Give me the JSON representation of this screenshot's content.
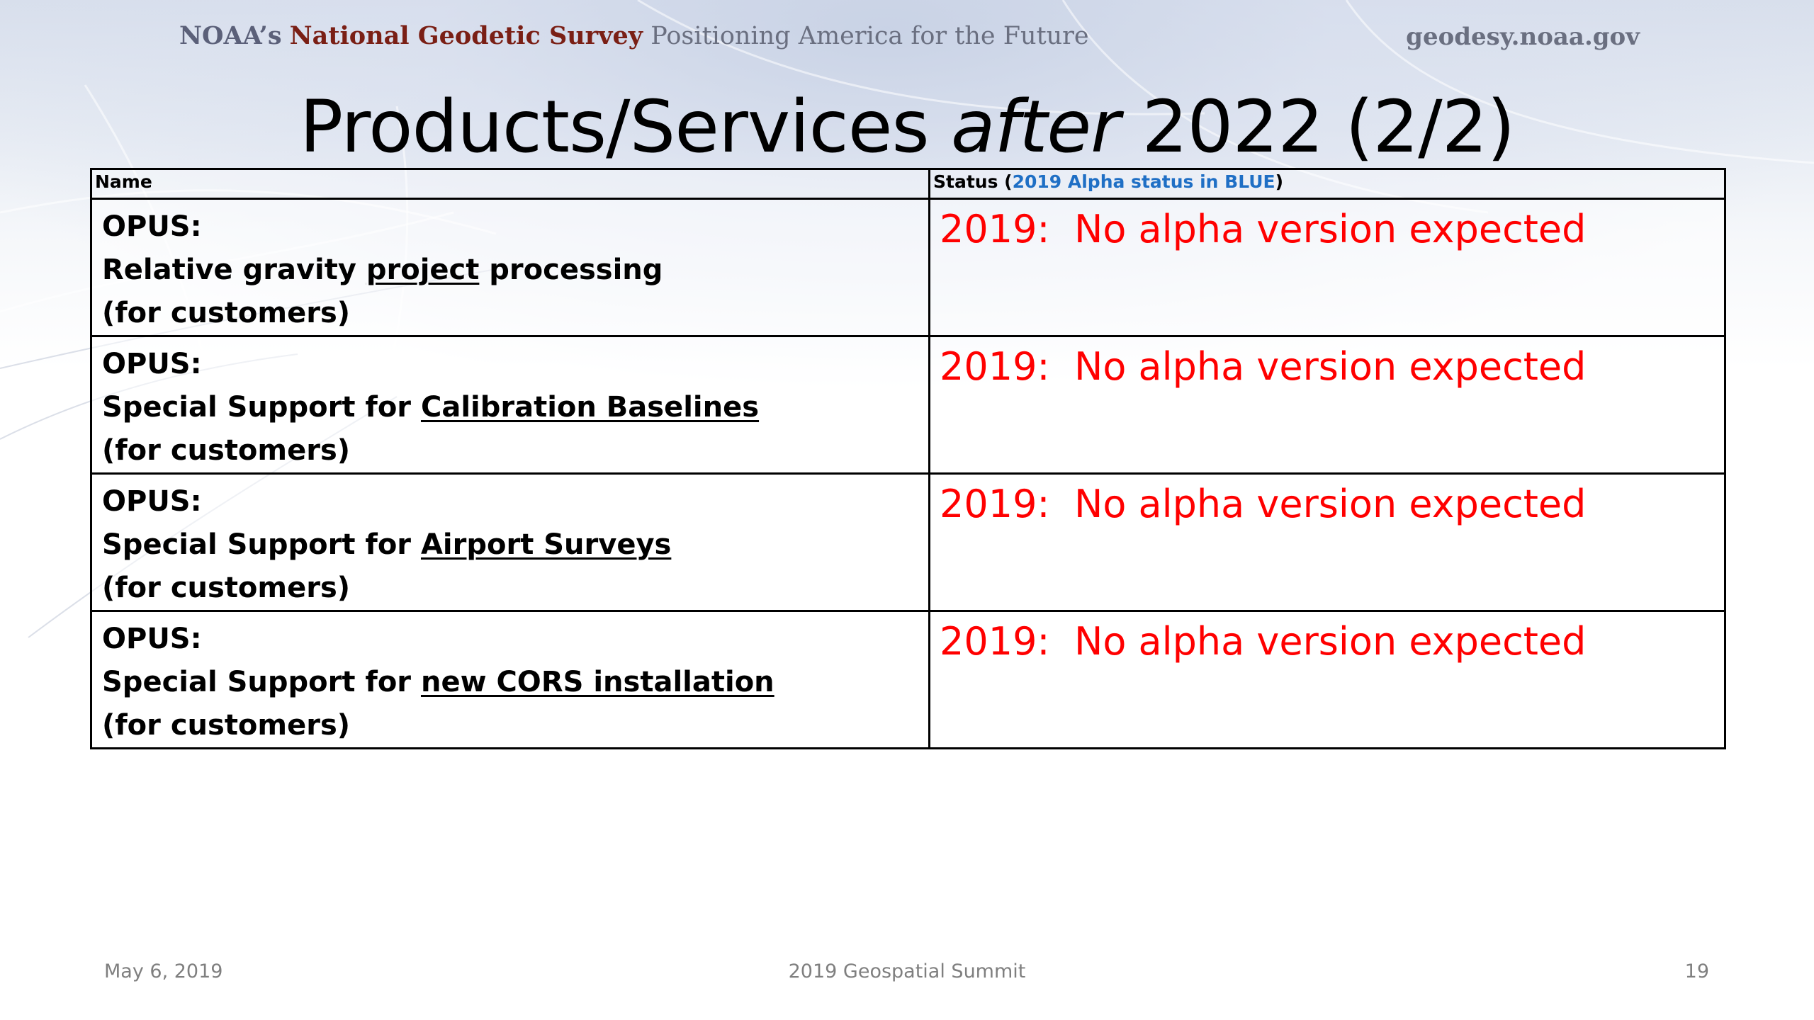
{
  "header": {
    "org_prefix": "NOAA’s",
    "org_name": "National Geodetic Survey",
    "tagline": "Positioning America for the Future",
    "site_url": "geodesy.noaa.gov"
  },
  "title": {
    "before": "Products/Services ",
    "emphasis": "after",
    "after": " 2022 (2/2)"
  },
  "table": {
    "col_name_header": "Name",
    "col_status_header_prefix": "Status (",
    "col_status_header_legend": "2019 Alpha status in BLUE",
    "col_status_header_suffix": ")",
    "rows": [
      {
        "line1": "OPUS:",
        "line2_pre": "Relative gravity ",
        "line2_under": "project",
        "line2_post": " processing",
        "line3": "(for customers)",
        "status": "2019:  No alpha version expected"
      },
      {
        "line1": "OPUS:",
        "line2_pre": "Special Support for ",
        "line2_under": "Calibration Baselines",
        "line2_post": "",
        "line3": "(for customers)",
        "status": "2019:  No alpha version expected"
      },
      {
        "line1": "OPUS:",
        "line2_pre": "Special Support for ",
        "line2_under": "Airport Surveys",
        "line2_post": "",
        "line3": "(for customers)",
        "status": "2019:  No alpha version expected"
      },
      {
        "line1": "OPUS:",
        "line2_pre": "Special Support for ",
        "line2_under": "new CORS installation",
        "line2_post": "",
        "line3": "(for customers)",
        "status": "2019:  No alpha version expected"
      }
    ]
  },
  "footer": {
    "date": "May 6, 2019",
    "event": "2019 Geospatial Summit",
    "page_number": "19"
  },
  "colors": {
    "status_red": "#ff0000",
    "legend_blue": "#1f6fc5",
    "ngs_maroon": "#7a1f15",
    "footer_gray": "#7f7f7f"
  }
}
